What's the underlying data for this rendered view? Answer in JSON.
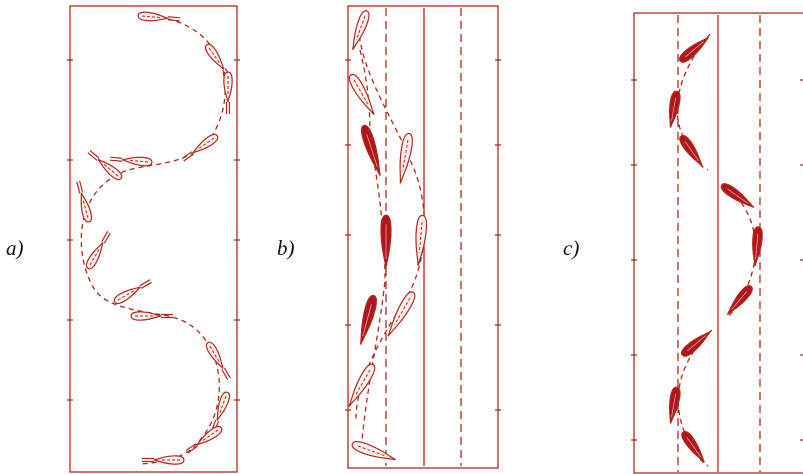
{
  "panels": [
    {
      "id": "a",
      "label": "a)"
    },
    {
      "id": "b",
      "label": "b)"
    },
    {
      "id": "c",
      "label": "c)"
    }
  ],
  "colors": {
    "line": "#b02a1e",
    "outline_fill": "#fbefee",
    "solid_fill": "#b0151a",
    "background": "#ffffff"
  },
  "icons": {
    "outline_shape": "open-leaf-outline-icon",
    "solid_shape": "filled-leaf-icon"
  }
}
